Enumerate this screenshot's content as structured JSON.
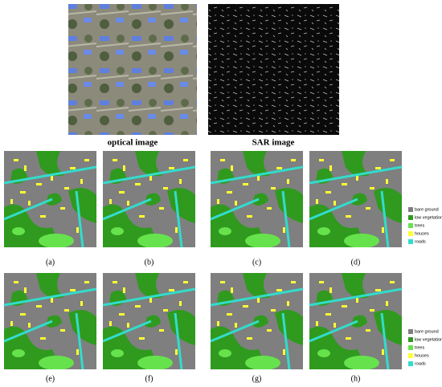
{
  "top_images": [
    {
      "caption": "optical image"
    },
    {
      "caption": "SAR image"
    }
  ],
  "panels": [
    "(a)",
    "(b)",
    "(c)",
    "(d)",
    "(e)",
    "(f)",
    "(g)",
    "(h)"
  ],
  "legends": [
    {
      "items": [
        {
          "label": "bare ground",
          "color": "#7f7f7f"
        },
        {
          "label": "low vegetation",
          "color": "#2f9a1e"
        },
        {
          "label": "trees",
          "color": "#66e34c"
        },
        {
          "label": "houses",
          "color": "#ffff33"
        },
        {
          "label": "roads",
          "color": "#33dccc"
        }
      ]
    },
    {
      "items": [
        {
          "label": "bare ground",
          "color": "#7f7f7f"
        },
        {
          "label": "low vegetation",
          "color": "#2f9a1e"
        },
        {
          "label": "trees",
          "color": "#66e34c"
        },
        {
          "label": "houses",
          "color": "#ffff33"
        },
        {
          "label": "roads",
          "color": "#33dccc"
        }
      ]
    }
  ]
}
